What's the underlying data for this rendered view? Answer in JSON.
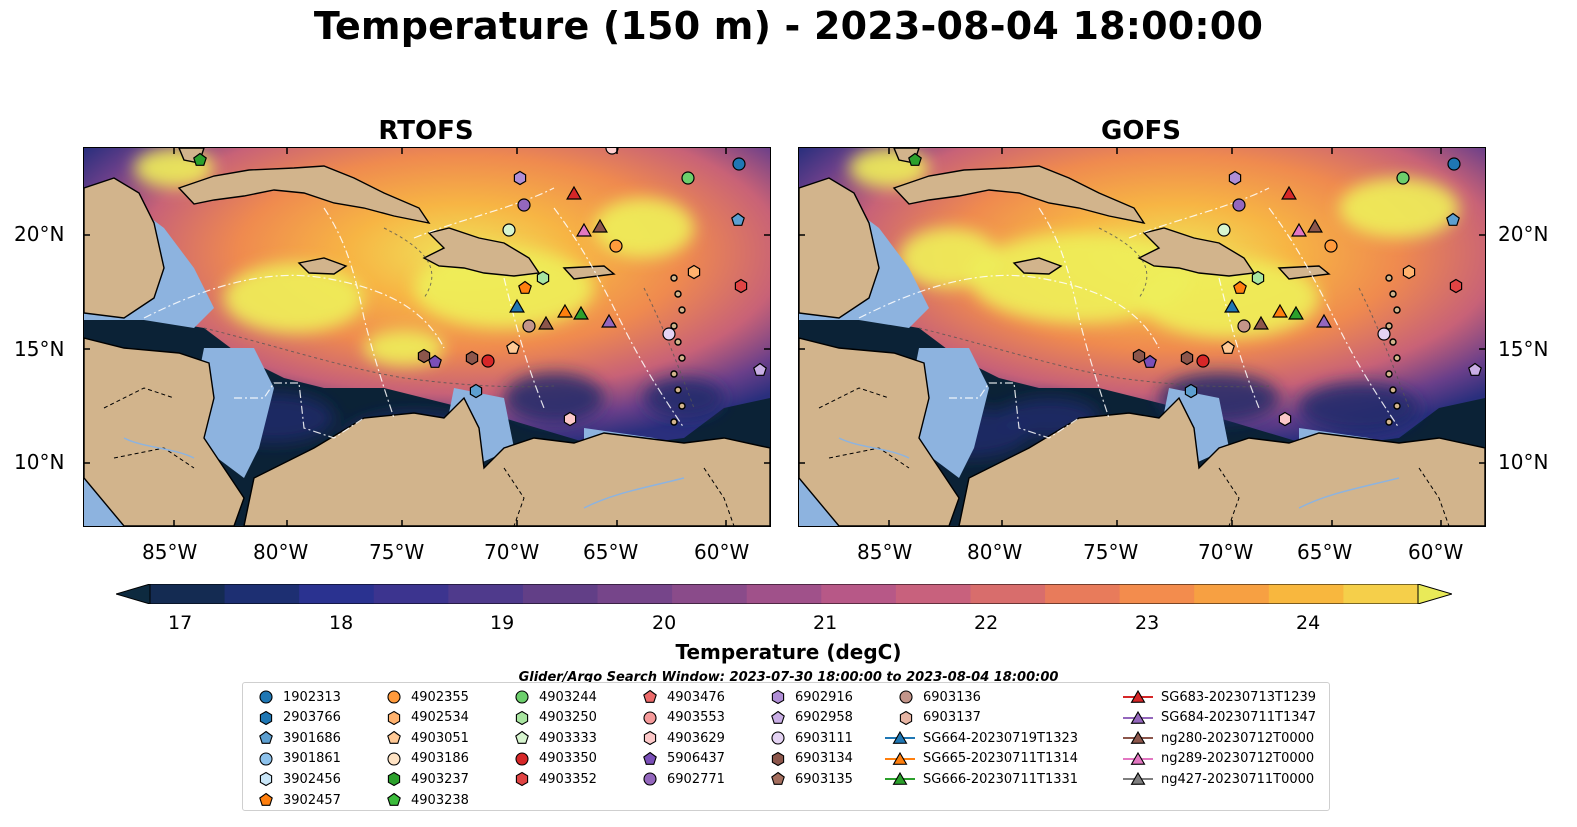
{
  "title": "Temperature (150 m) - 2023-08-04 18:00:00",
  "panels": [
    {
      "title": "RTOFS"
    },
    {
      "title": "GOFS"
    }
  ],
  "lat_ticks": [
    "20°N",
    "15°N",
    "10°N"
  ],
  "lon_ticks": [
    "85°W",
    "80°W",
    "75°W",
    "70°W",
    "65°W",
    "60°W"
  ],
  "colorbar": {
    "label": "Temperature (degC)",
    "ticks": [
      "17",
      "18",
      "19",
      "20",
      "21",
      "22",
      "23",
      "24"
    ],
    "colors": [
      "#0d2a3f",
      "#142b52",
      "#1d2f72",
      "#2a3290",
      "#3c348f",
      "#4f3a8c",
      "#623f87",
      "#76458a",
      "#8a4b8a",
      "#a0518a",
      "#b75887",
      "#c8617d",
      "#d86d6c",
      "#e87b5b",
      "#f38c4d",
      "#f7a042",
      "#f8b73e",
      "#f5cf4a",
      "#e9ea58"
    ]
  },
  "search_window": "Glider/Argo Search Window: 2023-07-30 18:00:00 to 2023-08-04 18:00:00",
  "legend": [
    {
      "label": "1902313",
      "marker": "circle",
      "color": "#1f77b4"
    },
    {
      "label": "2903766",
      "marker": "hexagon",
      "color": "#1f77b4"
    },
    {
      "label": "3901686",
      "marker": "pentagon",
      "color": "#5d9fd0"
    },
    {
      "label": "3901861",
      "marker": "circle",
      "color": "#8dc2ec"
    },
    {
      "label": "3902456",
      "marker": "hexagon",
      "color": "#c9e6f8"
    },
    {
      "label": "3902457",
      "marker": "pentagon",
      "color": "#ff7f0e"
    },
    {
      "label": "4902355",
      "marker": "circle",
      "color": "#ff9a3c"
    },
    {
      "label": "4902534",
      "marker": "hexagon",
      "color": "#ffb26e"
    },
    {
      "label": "4903051",
      "marker": "pentagon",
      "color": "#ffc996"
    },
    {
      "label": "4903186",
      "marker": "circle",
      "color": "#ffe3c4"
    },
    {
      "label": "4903237",
      "marker": "hexagon",
      "color": "#2ca02c"
    },
    {
      "label": "4903238",
      "marker": "pentagon",
      "color": "#3cbc3c"
    },
    {
      "label": "4903244",
      "marker": "circle",
      "color": "#6ccf6c"
    },
    {
      "label": "4903250",
      "marker": "hexagon",
      "color": "#a8e5a0"
    },
    {
      "label": "4903333",
      "marker": "pentagon",
      "color": "#d7f5cf"
    },
    {
      "label": "4903350",
      "marker": "circle",
      "color": "#d62728"
    },
    {
      "label": "4903352",
      "marker": "hexagon",
      "color": "#e04444"
    },
    {
      "label": "4903476",
      "marker": "pentagon",
      "color": "#ec6a6a"
    },
    {
      "label": "4903553",
      "marker": "circle",
      "color": "#f59a9a"
    },
    {
      "label": "4903629",
      "marker": "hexagon",
      "color": "#fcc8c8"
    },
    {
      "label": "5906437",
      "marker": "pentagon",
      "color": "#7a4fb8"
    },
    {
      "label": "6902771",
      "marker": "circle",
      "color": "#9467bd"
    },
    {
      "label": "6902916",
      "marker": "hexagon",
      "color": "#b08ed6"
    },
    {
      "label": "6902958",
      "marker": "pentagon",
      "color": "#c9aee5"
    },
    {
      "label": "6903111",
      "marker": "circle",
      "color": "#e4d3f3"
    },
    {
      "label": "6903134",
      "marker": "hexagon",
      "color": "#8c564b"
    },
    {
      "label": "6903135",
      "marker": "pentagon",
      "color": "#a46e5e"
    },
    {
      "label": "6903136",
      "marker": "circle",
      "color": "#c3958a"
    },
    {
      "label": "6903137",
      "marker": "hexagon",
      "color": "#e7b5a4"
    },
    {
      "label": "SG664-20230719T1323",
      "marker": "triangle-line",
      "color": "#1f77b4"
    },
    {
      "label": "SG665-20230711T1314",
      "marker": "triangle-line",
      "color": "#ff7f0e"
    },
    {
      "label": "SG666-20230711T1331",
      "marker": "triangle-line",
      "color": "#2ca02c"
    },
    {
      "label": "SG683-20230713T1239",
      "marker": "triangle-line",
      "color": "#d62728"
    },
    {
      "label": "SG684-20230711T1347",
      "marker": "triangle-line",
      "color": "#9467bd"
    },
    {
      "label": "ng280-20230712T0000",
      "marker": "triangle-line",
      "color": "#8c564b"
    },
    {
      "label": "ng289-20230712T0000",
      "marker": "triangle-line",
      "color": "#e377c2"
    },
    {
      "label": "ng427-20230711T0000",
      "marker": "triangle-line",
      "color": "#7f7f7f"
    }
  ],
  "colors": {
    "land": "#d2b48c",
    "shelf": "#8db3df",
    "deep": "#0b2236"
  }
}
